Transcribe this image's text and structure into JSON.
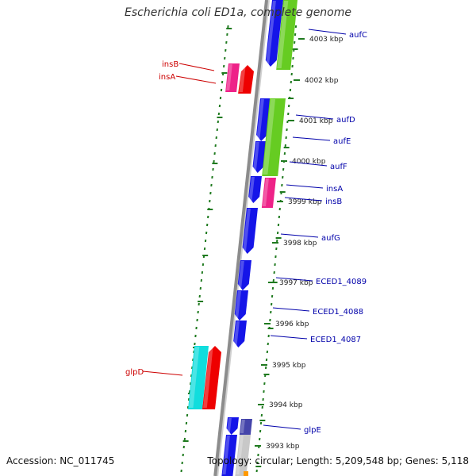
{
  "title": "Escherichia coli ED1a, complete genome",
  "footer": {
    "accession": "Accession: NC_011745",
    "summary": "Topology: circular; Length: 5,209,548 bp; Genes: 5,118"
  },
  "colors": {
    "backbone": "#8c8c8c",
    "dotted": "#1f7a1f",
    "cds": "#1515e8",
    "insertion": "#ee2288",
    "red": "#ee0000",
    "green": "#66cc22",
    "cyan": "#11dddd",
    "gray": "#c8c8c8",
    "navy": "#4444aa",
    "label_blue": "#0000aa",
    "label_red": "#cc0000"
  },
  "scale_ticks": [
    {
      "id": "4003",
      "label": "4003 kbp"
    },
    {
      "id": "4002",
      "label": "4002 kbp"
    },
    {
      "id": "4001",
      "label": "4001 kbp"
    },
    {
      "id": "4000",
      "label": "4000 kbp"
    },
    {
      "id": "3999",
      "label": "3999 kbp"
    },
    {
      "id": "3998",
      "label": "3998 kbp"
    },
    {
      "id": "3997",
      "label": "3997 kbp"
    },
    {
      "id": "3996",
      "label": "3996 kbp"
    },
    {
      "id": "3995",
      "label": "3995 kbp"
    },
    {
      "id": "3994",
      "label": "3994 kbp"
    },
    {
      "id": "3993",
      "label": "3993 kbp"
    }
  ],
  "gene_labels": [
    {
      "id": "aufC",
      "text": "aufC",
      "side": "right"
    },
    {
      "id": "aufD",
      "text": "aufD",
      "side": "right"
    },
    {
      "id": "aufE",
      "text": "aufE",
      "side": "right"
    },
    {
      "id": "aufF",
      "text": "aufF",
      "side": "right"
    },
    {
      "id": "insA_r",
      "text": "insA",
      "side": "right"
    },
    {
      "id": "insB_r",
      "text": "insB",
      "side": "right"
    },
    {
      "id": "aufG",
      "text": "aufG",
      "side": "right"
    },
    {
      "id": "e4089",
      "text": "ECED1_4089",
      "side": "right"
    },
    {
      "id": "e4088",
      "text": "ECED1_4088",
      "side": "right"
    },
    {
      "id": "e4087",
      "text": "ECED1_4087",
      "side": "right"
    },
    {
      "id": "glpE",
      "text": "glpE",
      "side": "right"
    },
    {
      "id": "insB_l",
      "text": "insB",
      "side": "left"
    },
    {
      "id": "insA_l",
      "text": "insA",
      "side": "left"
    },
    {
      "id": "glpD",
      "text": "glpD",
      "side": "left"
    }
  ]
}
